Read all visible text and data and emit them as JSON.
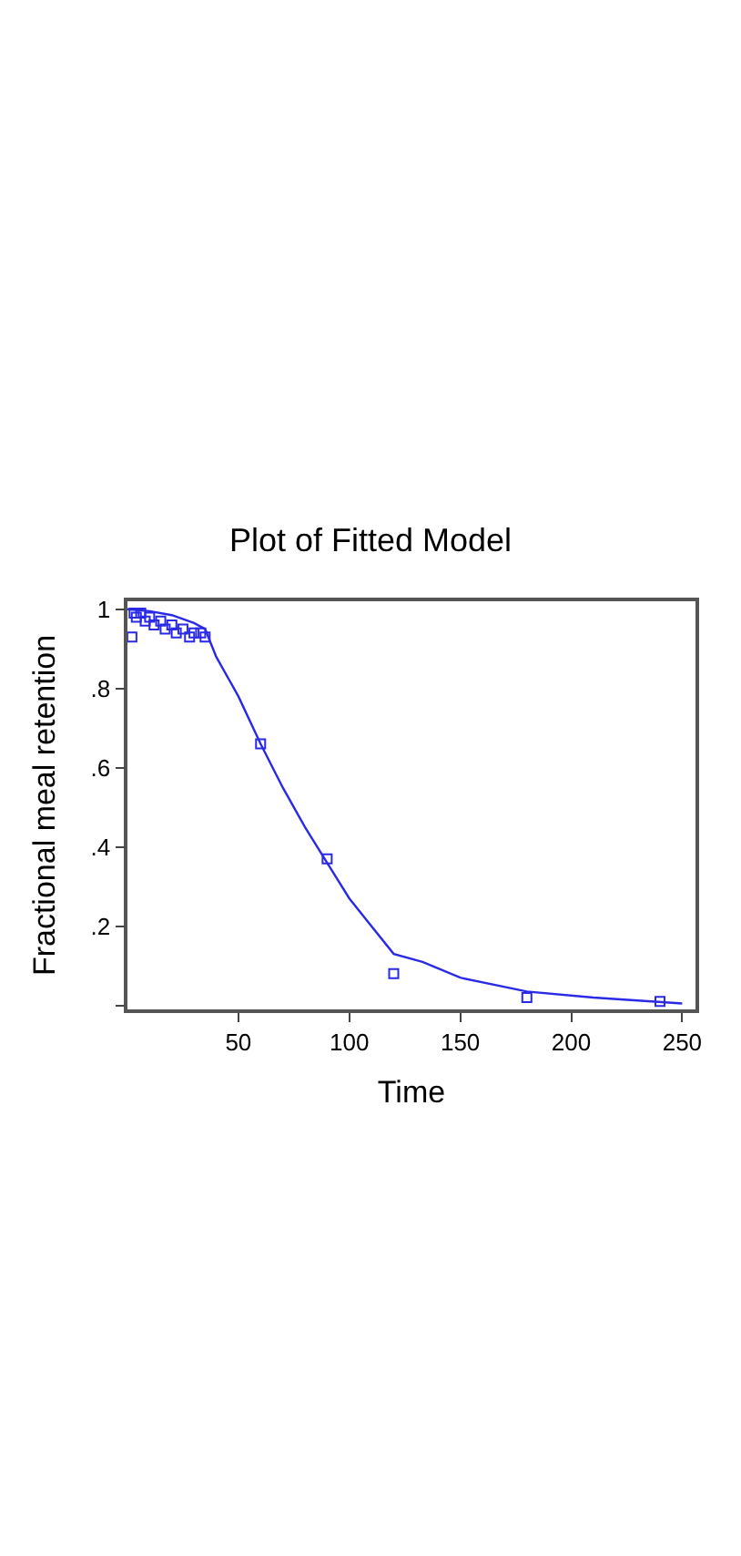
{
  "chart_data": {
    "type": "scatter",
    "title": "Plot of Fitted Model",
    "xlabel": "Time",
    "ylabel": "Fractional meal retention",
    "xlim": [
      0,
      256
    ],
    "ylim": [
      -0.01,
      1.02
    ],
    "xticks": [
      50,
      100,
      150,
      200,
      250
    ],
    "yticks": [
      {
        "value": 0,
        "label": null
      },
      {
        "value": 0.2,
        "label": ".2"
      },
      {
        "value": 0.4,
        "label": ".4"
      },
      {
        "value": 0.6,
        "label": ".6"
      },
      {
        "value": 0.8,
        "label": ".8"
      },
      {
        "value": 1,
        "label": "1"
      }
    ],
    "series": [
      {
        "color": "#2a2ae6",
        "marker": "square",
        "x": [
          2,
          3,
          4,
          6,
          8,
          10,
          12,
          15,
          17,
          20,
          22,
          25,
          28,
          30,
          33,
          35,
          60,
          90,
          120,
          180,
          240
        ],
        "values": [
          0.93,
          0.99,
          0.98,
          0.99,
          0.97,
          0.98,
          0.96,
          0.97,
          0.95,
          0.96,
          0.94,
          0.95,
          0.93,
          0.94,
          0.94,
          0.93,
          0.66,
          0.37,
          0.08,
          0.02,
          0.01
        ]
      },
      {
        "type": "line",
        "color": "#2a2ae6",
        "line_style": "solid",
        "x": [
          0,
          10,
          20,
          30,
          35,
          40,
          50,
          60,
          70,
          80,
          90,
          100,
          110,
          120,
          133,
          150,
          180,
          210,
          250
        ],
        "values": [
          1.0,
          0.995,
          0.985,
          0.965,
          0.95,
          0.88,
          0.78,
          0.66,
          0.55,
          0.45,
          0.36,
          0.27,
          0.2,
          0.13,
          0.11,
          0.07,
          0.035,
          0.02,
          0.005
        ]
      }
    ]
  }
}
